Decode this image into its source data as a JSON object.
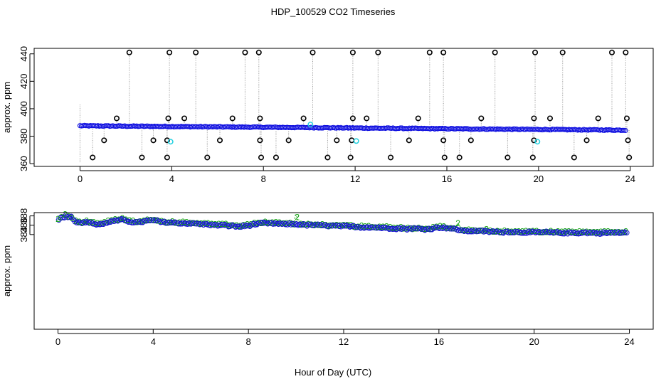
{
  "chart_data": [
    {
      "type": "scatter",
      "title": "HDP_100529  CO2 Timeseries",
      "xlabel": "",
      "ylabel": "approx. ppm",
      "xlim": [
        -2,
        25
      ],
      "ylim": [
        358,
        444
      ],
      "xticks": [
        0,
        4,
        8,
        12,
        16,
        20,
        24
      ],
      "xtick_labels": [
        "0",
        "4",
        "8",
        "12",
        "16",
        "20",
        "24"
      ],
      "yticks": [
        360,
        380,
        400,
        420,
        440
      ],
      "ytick_labels": [
        "360",
        "380",
        "400",
        "420",
        "440"
      ],
      "colors": {
        "baseline": "#1010e0",
        "outlier": "#000000",
        "cyan": "#20d0e0",
        "series2": "#10a010",
        "spike_line": "#999999"
      },
      "baseline": {
        "x_start": 0,
        "x_end": 23.8,
        "start_value": 387.6,
        "end_value": 384.4
      },
      "outliers_high": [
        2.15,
        3.9,
        5.05,
        7.2,
        7.8,
        10.15,
        11.9,
        13.0,
        15.25,
        15.85,
        18.1,
        19.85,
        21.05,
        23.2,
        23.8
      ],
      "outliers_mid": [
        1.6,
        3.85,
        4.55,
        6.65,
        7.85,
        9.75,
        11.9,
        12.5,
        14.75,
        17.5,
        19.8,
        20.5,
        22.6,
        23.85
      ],
      "outliers_low_377": [
        1.05,
        3.2,
        3.8,
        6.1,
        7.85,
        9.1,
        11.2,
        11.85,
        14.35,
        15.85,
        17.05,
        19.8,
        22.1,
        23.9
      ],
      "outliers_low_364": [
        0.55,
        2.7,
        3.8,
        5.55,
        7.9,
        8.55,
        10.8,
        11.8,
        13.55,
        15.9,
        16.55,
        18.65,
        19.75,
        21.55,
        23.95
      ],
      "cyan_points": [
        [
          3.95,
          376
        ],
        [
          12.05,
          376.5
        ],
        [
          19.95,
          376
        ],
        [
          10.05,
          388.5
        ]
      ]
    },
    {
      "type": "scatter",
      "title": "",
      "xlabel": "Hour of Day (UTC)",
      "ylabel": "approx. ppm",
      "xlim": [
        -1,
        25
      ],
      "ylim": [
        363.7,
        388.7
      ],
      "xticks": [
        0,
        4,
        8,
        12,
        16,
        20,
        24
      ],
      "xtick_labels": [
        "0",
        "4",
        "8",
        "12",
        "16",
        "20",
        "24"
      ],
      "yticks": [
        384,
        386,
        388
      ],
      "ytick_labels": [
        "384",
        "386",
        "388"
      ],
      "colors": {
        "series2": "#10a010",
        "series3": "#1515c8",
        "circles": "#1a1ad8"
      },
      "series_labels": {
        "series2": "2",
        "series3": "3"
      },
      "trend": [
        [
          0.0,
          387.3
        ],
        [
          0.3,
          388.1
        ],
        [
          0.55,
          387.7
        ],
        [
          0.7,
          386.8
        ],
        [
          1.0,
          386.6
        ],
        [
          1.3,
          386.7
        ],
        [
          1.6,
          386.2
        ],
        [
          1.9,
          386.3
        ],
        [
          2.1,
          386.8
        ],
        [
          2.4,
          387.0
        ],
        [
          2.7,
          387.2
        ],
        [
          3.0,
          386.8
        ],
        [
          3.3,
          386.6
        ],
        [
          3.6,
          386.9
        ],
        [
          4.0,
          387.1
        ],
        [
          4.3,
          386.7
        ],
        [
          4.7,
          386.6
        ],
        [
          5.0,
          386.5
        ],
        [
          5.5,
          386.4
        ],
        [
          6.0,
          386.3
        ],
        [
          6.5,
          386.1
        ],
        [
          7.0,
          386.0
        ],
        [
          7.3,
          385.9
        ],
        [
          7.6,
          385.7
        ],
        [
          7.9,
          385.9
        ],
        [
          8.2,
          386.2
        ],
        [
          8.6,
          386.5
        ],
        [
          9.0,
          386.4
        ],
        [
          9.5,
          386.3
        ],
        [
          10.0,
          386.2
        ],
        [
          10.5,
          386.1
        ],
        [
          11.0,
          386.0
        ],
        [
          11.5,
          385.9
        ],
        [
          12.0,
          385.8
        ],
        [
          12.5,
          385.7
        ],
        [
          13.0,
          385.6
        ],
        [
          13.5,
          385.5
        ],
        [
          14.0,
          385.4
        ],
        [
          14.5,
          385.3
        ],
        [
          15.0,
          385.3
        ],
        [
          15.5,
          385.2
        ],
        [
          16.0,
          385.6
        ],
        [
          16.4,
          385.4
        ],
        [
          16.8,
          385.0
        ],
        [
          17.2,
          384.8
        ],
        [
          17.6,
          384.8
        ],
        [
          18.0,
          384.7
        ],
        [
          18.5,
          384.6
        ],
        [
          19.0,
          384.6
        ],
        [
          19.5,
          384.5
        ],
        [
          20.0,
          384.5
        ],
        [
          20.5,
          384.5
        ],
        [
          21.0,
          384.4
        ],
        [
          21.5,
          384.4
        ],
        [
          22.0,
          384.4
        ],
        [
          22.5,
          384.4
        ],
        [
          23.0,
          384.4
        ],
        [
          23.5,
          384.4
        ],
        [
          23.9,
          384.5
        ]
      ],
      "spikes": [
        [
          10.0,
          388.2
        ],
        [
          16.8,
          386.4
        ],
        [
          17.9,
          385.6
        ]
      ]
    }
  ]
}
